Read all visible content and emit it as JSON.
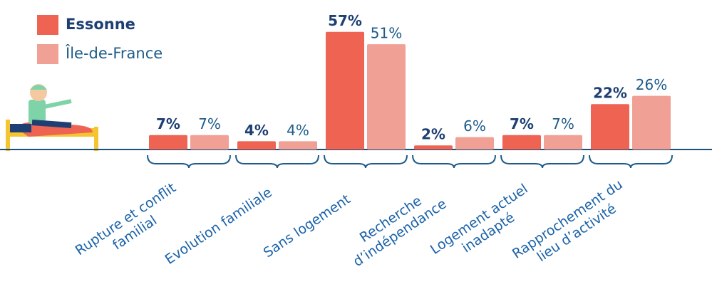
{
  "chart_data": {
    "type": "bar",
    "categories": [
      [
        "Rupture et conflit",
        "familial"
      ],
      [
        "Evolution familiale"
      ],
      [
        "Sans logement"
      ],
      [
        "Recherche",
        "d’indépendance"
      ],
      [
        "Logement actuel",
        "inadapté"
      ],
      [
        "Rapprochement du",
        "lieu d’activité"
      ]
    ],
    "series": [
      {
        "name": "Essonne",
        "color": "#ee6352",
        "values": [
          7,
          4,
          57,
          2,
          7,
          22
        ],
        "value_labels": [
          "7%",
          "4%",
          "57%",
          "2%",
          "7%",
          "22%"
        ]
      },
      {
        "name": "Île-de-France",
        "color": "#f0a095",
        "values": [
          7,
          4,
          51,
          6,
          7,
          26
        ],
        "value_labels": [
          "7%",
          "4%",
          "51%",
          "6%",
          "7%",
          "26%"
        ]
      }
    ]
  }
}
